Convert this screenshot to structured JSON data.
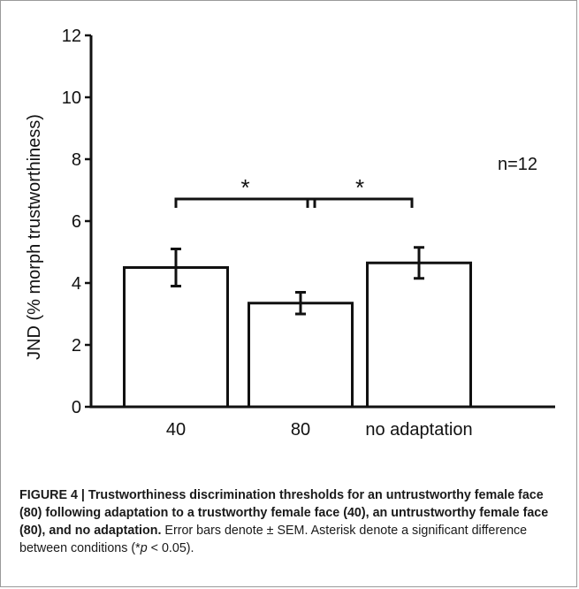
{
  "chart_data": {
    "type": "bar",
    "categories": [
      "40",
      "80",
      "no adaptation"
    ],
    "values": [
      4.5,
      3.35,
      4.65
    ],
    "errors": [
      0.6,
      0.35,
      0.5
    ],
    "ylabel": "JND (% morph trustworthiness)",
    "xlabel": "",
    "title": "",
    "ylim": [
      0,
      12
    ],
    "yticks": [
      "0",
      "2",
      "4",
      "6",
      "8",
      "10",
      "12"
    ],
    "ytick_values": [
      0,
      2,
      4,
      6,
      8,
      10,
      12
    ],
    "annotation": "n=12",
    "significance": [
      {
        "from": 0,
        "to": 1,
        "label": "*"
      },
      {
        "from": 1,
        "to": 2,
        "label": "*"
      }
    ],
    "grid": false
  },
  "caption": {
    "figure_label": "FIGURE 4 | ",
    "title": "Trustworthiness discrimination thresholds for an untrustworthy female face (80) following adaptation to a trustworthy female face (40), an untrustworthy female face (80), and no adaptation.",
    "body_start": " Error bars denote ± SEM. Asterisk denote a significant difference between conditions (*",
    "p_symbol": "p",
    "body_end": " < 0.05)."
  }
}
